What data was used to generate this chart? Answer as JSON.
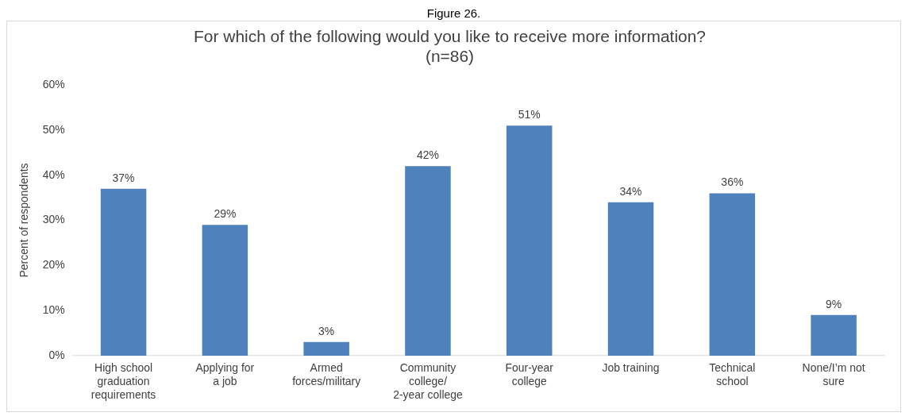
{
  "chart_data": {
    "type": "bar",
    "title": "For which of the following would you like to receive more information?\n(n=86)",
    "ylabel": "Percent of respondents",
    "annotations": [
      "Figure 26."
    ],
    "categories": [
      "High school\ngraduation\nrequirements",
      "Applying for\na job",
      "Armed\nforces/military",
      "Community\ncollege/\n2-year college",
      "Four-year\ncollege",
      "Job training",
      "Technical\nschool",
      "None/I’m not\nsure"
    ],
    "values": [
      37,
      29,
      3,
      42,
      51,
      34,
      36,
      9
    ],
    "value_labels": [
      "37%",
      "29%",
      "3%",
      "42%",
      "51%",
      "34%",
      "36%",
      "9%"
    ],
    "color": "#4f81bd",
    "ylim": [
      0,
      60
    ],
    "yticks": [
      {
        "value": 0,
        "label": "0%"
      },
      {
        "value": 10,
        "label": "10%"
      },
      {
        "value": 20,
        "label": "20%"
      },
      {
        "value": 30,
        "label": "30%"
      },
      {
        "value": 40,
        "label": "40%"
      },
      {
        "value": 50,
        "label": "50%"
      },
      {
        "value": 60,
        "label": "60%"
      }
    ],
    "grid": false,
    "legend": false
  }
}
